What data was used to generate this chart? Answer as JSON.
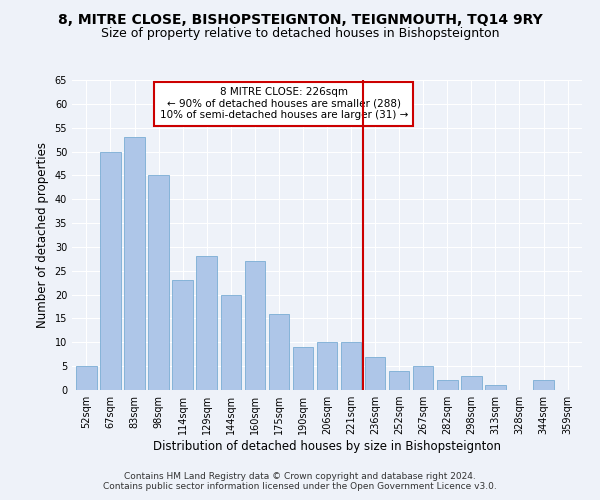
{
  "title": "8, MITRE CLOSE, BISHOPSTEIGNTON, TEIGNMOUTH, TQ14 9RY",
  "subtitle": "Size of property relative to detached houses in Bishopsteignton",
  "xlabel": "Distribution of detached houses by size in Bishopsteignton",
  "ylabel": "Number of detached properties",
  "categories": [
    "52sqm",
    "67sqm",
    "83sqm",
    "98sqm",
    "114sqm",
    "129sqm",
    "144sqm",
    "160sqm",
    "175sqm",
    "190sqm",
    "206sqm",
    "221sqm",
    "236sqm",
    "252sqm",
    "267sqm",
    "282sqm",
    "298sqm",
    "313sqm",
    "328sqm",
    "344sqm",
    "359sqm"
  ],
  "values": [
    5,
    50,
    53,
    45,
    23,
    28,
    20,
    27,
    16,
    9,
    10,
    10,
    7,
    4,
    5,
    2,
    3,
    1,
    0,
    2,
    0
  ],
  "bar_color": "#aec6e8",
  "bar_edgecolor": "#7aadd4",
  "vline_x": 11.5,
  "vline_color": "#cc0000",
  "annotation_text": "8 MITRE CLOSE: 226sqm\n← 90% of detached houses are smaller (288)\n10% of semi-detached houses are larger (31) →",
  "annotation_box_color": "#ffffff",
  "annotation_box_edgecolor": "#cc0000",
  "ylim": [
    0,
    65
  ],
  "yticks": [
    0,
    5,
    10,
    15,
    20,
    25,
    30,
    35,
    40,
    45,
    50,
    55,
    60,
    65
  ],
  "footer1": "Contains HM Land Registry data © Crown copyright and database right 2024.",
  "footer2": "Contains public sector information licensed under the Open Government Licence v3.0.",
  "bg_color": "#eef2f9",
  "grid_color": "#ffffff",
  "title_fontsize": 10,
  "subtitle_fontsize": 9,
  "axis_label_fontsize": 8.5,
  "tick_fontsize": 7,
  "footer_fontsize": 6.5
}
